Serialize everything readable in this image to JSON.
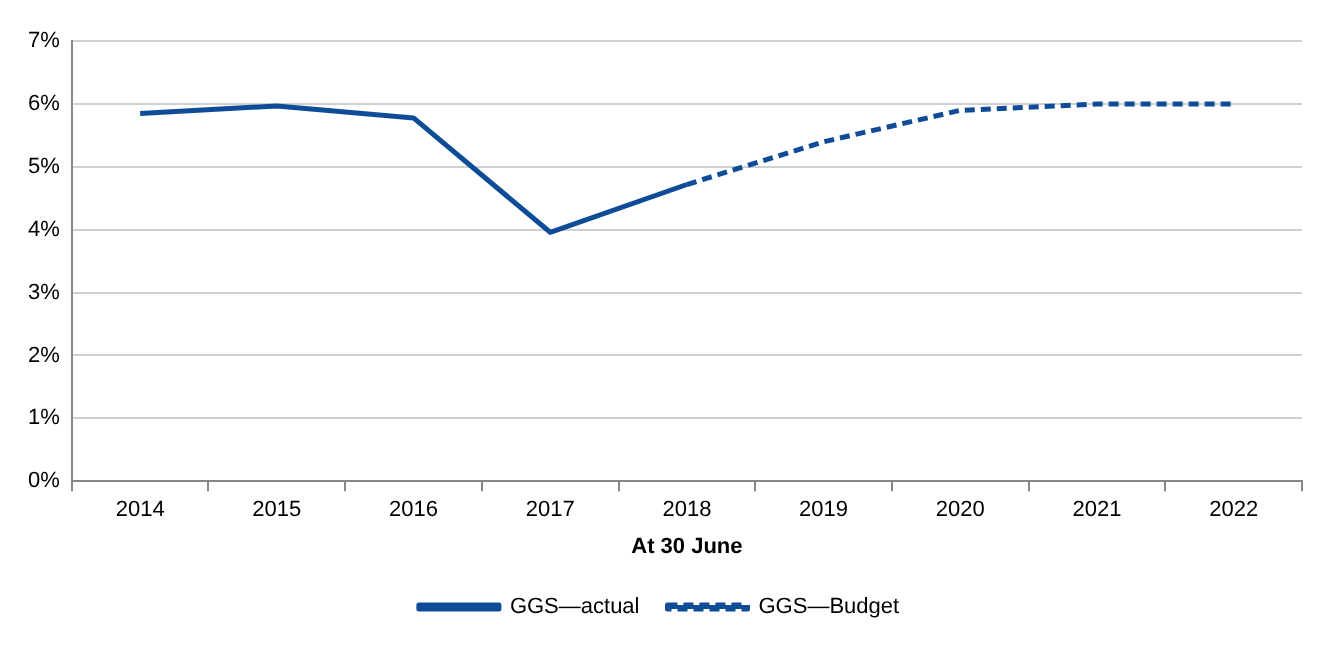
{
  "chart_data": {
    "type": "line",
    "xlabel": "At 30 June",
    "categories": [
      "2014",
      "2015",
      "2016",
      "2017",
      "2018",
      "2019",
      "2020",
      "2021",
      "2022"
    ],
    "series": [
      {
        "name": "GGS—actual",
        "color": "#0f4c97",
        "line_style": "solid",
        "values": [
          5.85,
          5.97,
          5.78,
          3.96,
          4.72,
          null,
          null,
          null,
          null
        ]
      },
      {
        "name": "GGS—Budget",
        "color": "#0f4c97",
        "line_style": "dashed",
        "values": [
          null,
          null,
          null,
          null,
          4.72,
          5.4,
          5.9,
          6.0,
          6.0
        ]
      }
    ],
    "ylim": [
      0,
      7
    ],
    "yticks": [
      {
        "value": 0,
        "label": "0%"
      },
      {
        "value": 1,
        "label": "1%"
      },
      {
        "value": 2,
        "label": "2%"
      },
      {
        "value": 3,
        "label": "3%"
      },
      {
        "value": 4,
        "label": "4%"
      },
      {
        "value": 5,
        "label": "5%"
      },
      {
        "value": 6,
        "label": "6%"
      },
      {
        "value": 7,
        "label": "7%"
      }
    ],
    "grid": "y",
    "legend": "bottom",
    "marker": "none"
  }
}
